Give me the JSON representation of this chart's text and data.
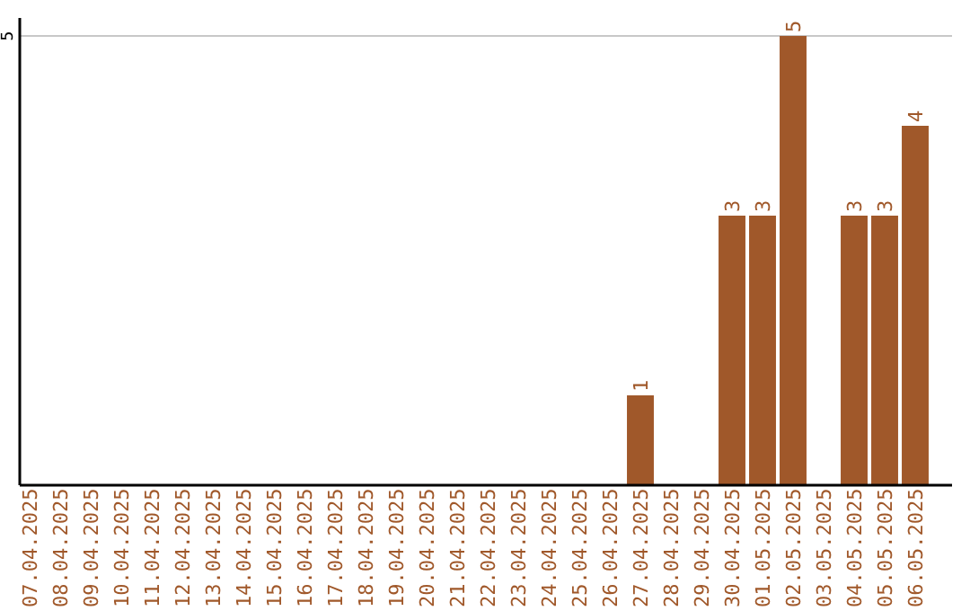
{
  "chart_data": {
    "type": "bar",
    "ylim": [
      0,
      5
    ],
    "categories": [
      "07.04.2025",
      "08.04.2025",
      "09.04.2025",
      "10.04.2025",
      "11.04.2025",
      "12.04.2025",
      "13.04.2025",
      "14.04.2025",
      "15.04.2025",
      "16.04.2025",
      "17.04.2025",
      "18.04.2025",
      "19.04.2025",
      "20.04.2025",
      "21.04.2025",
      "22.04.2025",
      "23.04.2025",
      "24.04.2025",
      "25.04.2025",
      "26.04.2025",
      "27.04.2025",
      "28.04.2025",
      "29.04.2025",
      "30.04.2025",
      "01.05.2025",
      "02.05.2025",
      "03.05.2025",
      "04.05.2025",
      "05.05.2025",
      "06.05.2025"
    ],
    "values": [
      null,
      null,
      null,
      null,
      null,
      null,
      null,
      null,
      null,
      null,
      null,
      null,
      null,
      null,
      null,
      null,
      null,
      null,
      null,
      null,
      1,
      null,
      null,
      3,
      3,
      5,
      null,
      3,
      3,
      4
    ],
    "data_labels": true,
    "color": "#a0582a",
    "ref_lines": [
      {
        "axis": "y",
        "value": 5,
        "label": "5",
        "color": "#c8c8c8"
      }
    ]
  }
}
